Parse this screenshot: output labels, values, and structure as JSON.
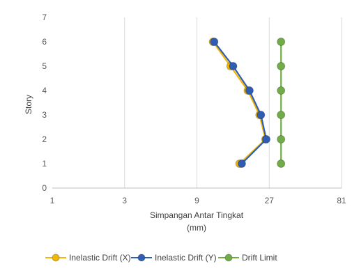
{
  "chart_data": {
    "type": "line",
    "title": "",
    "xlabel": "Simpangan Antar Tingkat",
    "xlabel_unit": "(mm)",
    "ylabel": "Story",
    "x_scale": "log3",
    "xlim": [
      1,
      81
    ],
    "ylim": [
      0,
      7
    ],
    "x_ticks": [
      "1",
      "3",
      "9",
      "27",
      "81"
    ],
    "y_ticks": [
      "0",
      "1",
      "2",
      "3",
      "4",
      "5",
      "6",
      "7"
    ],
    "grid": "vertical",
    "legend_position": "bottom",
    "series": [
      {
        "name": "Inelastic Drift (X)",
        "color": "#F2B705",
        "points": [
          {
            "x": 17.2,
            "y": 1
          },
          {
            "x": 25.5,
            "y": 2
          },
          {
            "x": 23.3,
            "y": 3
          },
          {
            "x": 19.5,
            "y": 4
          },
          {
            "x": 15.0,
            "y": 5
          },
          {
            "x": 11.5,
            "y": 6
          }
        ]
      },
      {
        "name": "Inelastic Drift (Y)",
        "color": "#2F5DB4",
        "points": [
          {
            "x": 17.8,
            "y": 1
          },
          {
            "x": 25.8,
            "y": 2
          },
          {
            "x": 23.8,
            "y": 3
          },
          {
            "x": 20.0,
            "y": 4
          },
          {
            "x": 15.6,
            "y": 5
          },
          {
            "x": 11.7,
            "y": 6
          }
        ]
      },
      {
        "name": "Drift Limit",
        "color": "#70AD47",
        "points": [
          {
            "x": 32.3,
            "y": 1
          },
          {
            "x": 32.3,
            "y": 2
          },
          {
            "x": 32.3,
            "y": 3
          },
          {
            "x": 32.3,
            "y": 4
          },
          {
            "x": 32.3,
            "y": 5
          },
          {
            "x": 32.3,
            "y": 6
          }
        ]
      }
    ]
  }
}
